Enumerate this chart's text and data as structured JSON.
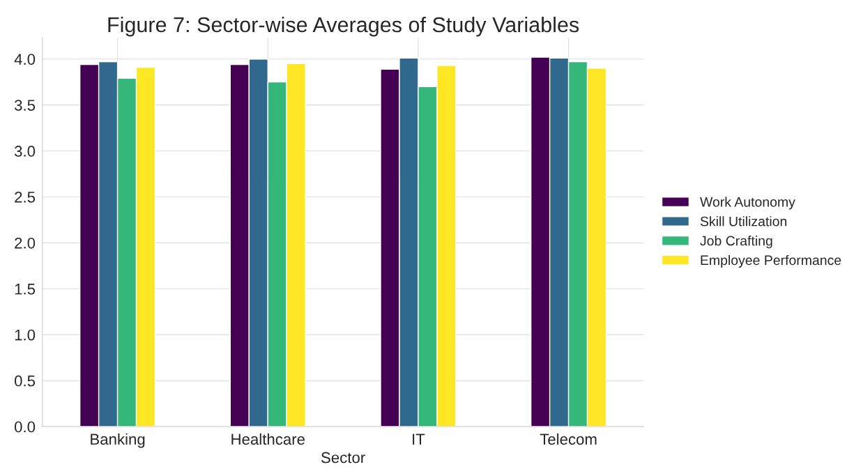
{
  "chart_data": {
    "type": "bar",
    "title": "Figure 7: Sector-wise Averages of Study Variables",
    "xlabel": "Sector",
    "categories": [
      "Banking",
      "Healthcare",
      "IT",
      "Telecom"
    ],
    "series": [
      {
        "name": "Work Autonomy",
        "color": "#440154",
        "values": [
          3.94,
          3.94,
          3.89,
          4.02
        ]
      },
      {
        "name": "Skill Utilization",
        "color": "#31688e",
        "values": [
          3.97,
          4.0,
          4.01,
          4.01
        ]
      },
      {
        "name": "Job Crafting",
        "color": "#35b779",
        "values": [
          3.79,
          3.75,
          3.7,
          3.97
        ]
      },
      {
        "name": "Employee Performance",
        "color": "#fde725",
        "values": [
          3.91,
          3.95,
          3.93,
          3.9
        ]
      }
    ],
    "ylim": [
      0,
      4.23
    ],
    "yticks": [
      {
        "value": 0,
        "label": "0.0"
      },
      0.5,
      {
        "value": 1,
        "label": "1.0"
      },
      1.5,
      {
        "value": 2,
        "label": "2.0"
      },
      2.5,
      {
        "value": 3,
        "label": "3.0"
      },
      3.5,
      {
        "value": 4,
        "label": "4.0"
      }
    ],
    "grid": true,
    "legend": "right"
  }
}
